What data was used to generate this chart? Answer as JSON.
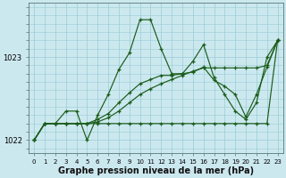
{
  "bg_color": "#cce8ef",
  "grid_color": "#99ccd5",
  "line_color": "#1a5c1a",
  "xlabel": "Graphe pression niveau de la mer (hPa)",
  "hours": [
    0,
    1,
    2,
    3,
    4,
    5,
    6,
    7,
    8,
    9,
    10,
    11,
    12,
    13,
    14,
    15,
    16,
    17,
    18,
    19,
    20,
    21,
    22,
    23
  ],
  "series_main": [
    1022.0,
    1022.2,
    1022.2,
    1022.35,
    1022.35,
    1022.0,
    1022.3,
    1022.55,
    1022.85,
    1023.05,
    1023.45,
    1023.45,
    1023.1,
    1022.8,
    1022.8,
    1022.95,
    1023.15,
    1022.75,
    1022.55,
    1022.35,
    1022.25,
    1022.45,
    1023.0,
    1023.2
  ],
  "series_flat": [
    1022.0,
    1022.2,
    1022.2,
    1022.2,
    1022.2,
    1022.2,
    1022.2,
    1022.2,
    1022.2,
    1022.2,
    1022.2,
    1022.2,
    1022.2,
    1022.2,
    1022.2,
    1022.2,
    1022.2,
    1022.2,
    1022.2,
    1022.2,
    1022.2,
    1022.2,
    1022.2,
    1023.2
  ],
  "series_ramp1": [
    1022.0,
    1022.2,
    1022.2,
    1022.2,
    1022.2,
    1022.2,
    1022.22,
    1022.27,
    1022.35,
    1022.45,
    1022.55,
    1022.62,
    1022.68,
    1022.73,
    1022.78,
    1022.83,
    1022.87,
    1022.87,
    1022.87,
    1022.87,
    1022.87,
    1022.87,
    1022.9,
    1023.2
  ],
  "series_ramp2": [
    1022.0,
    1022.2,
    1022.2,
    1022.2,
    1022.2,
    1022.2,
    1022.25,
    1022.32,
    1022.45,
    1022.57,
    1022.68,
    1022.73,
    1022.78,
    1022.78,
    1022.8,
    1022.82,
    1022.88,
    1022.72,
    1022.65,
    1022.55,
    1022.28,
    1022.55,
    1022.88,
    1023.2
  ],
  "ylim": [
    1021.85,
    1023.65
  ],
  "yticks": [
    1022,
    1023
  ],
  "xtick_fontsize": 5.0,
  "ytick_fontsize": 6.0,
  "xlabel_fontsize": 7.0
}
